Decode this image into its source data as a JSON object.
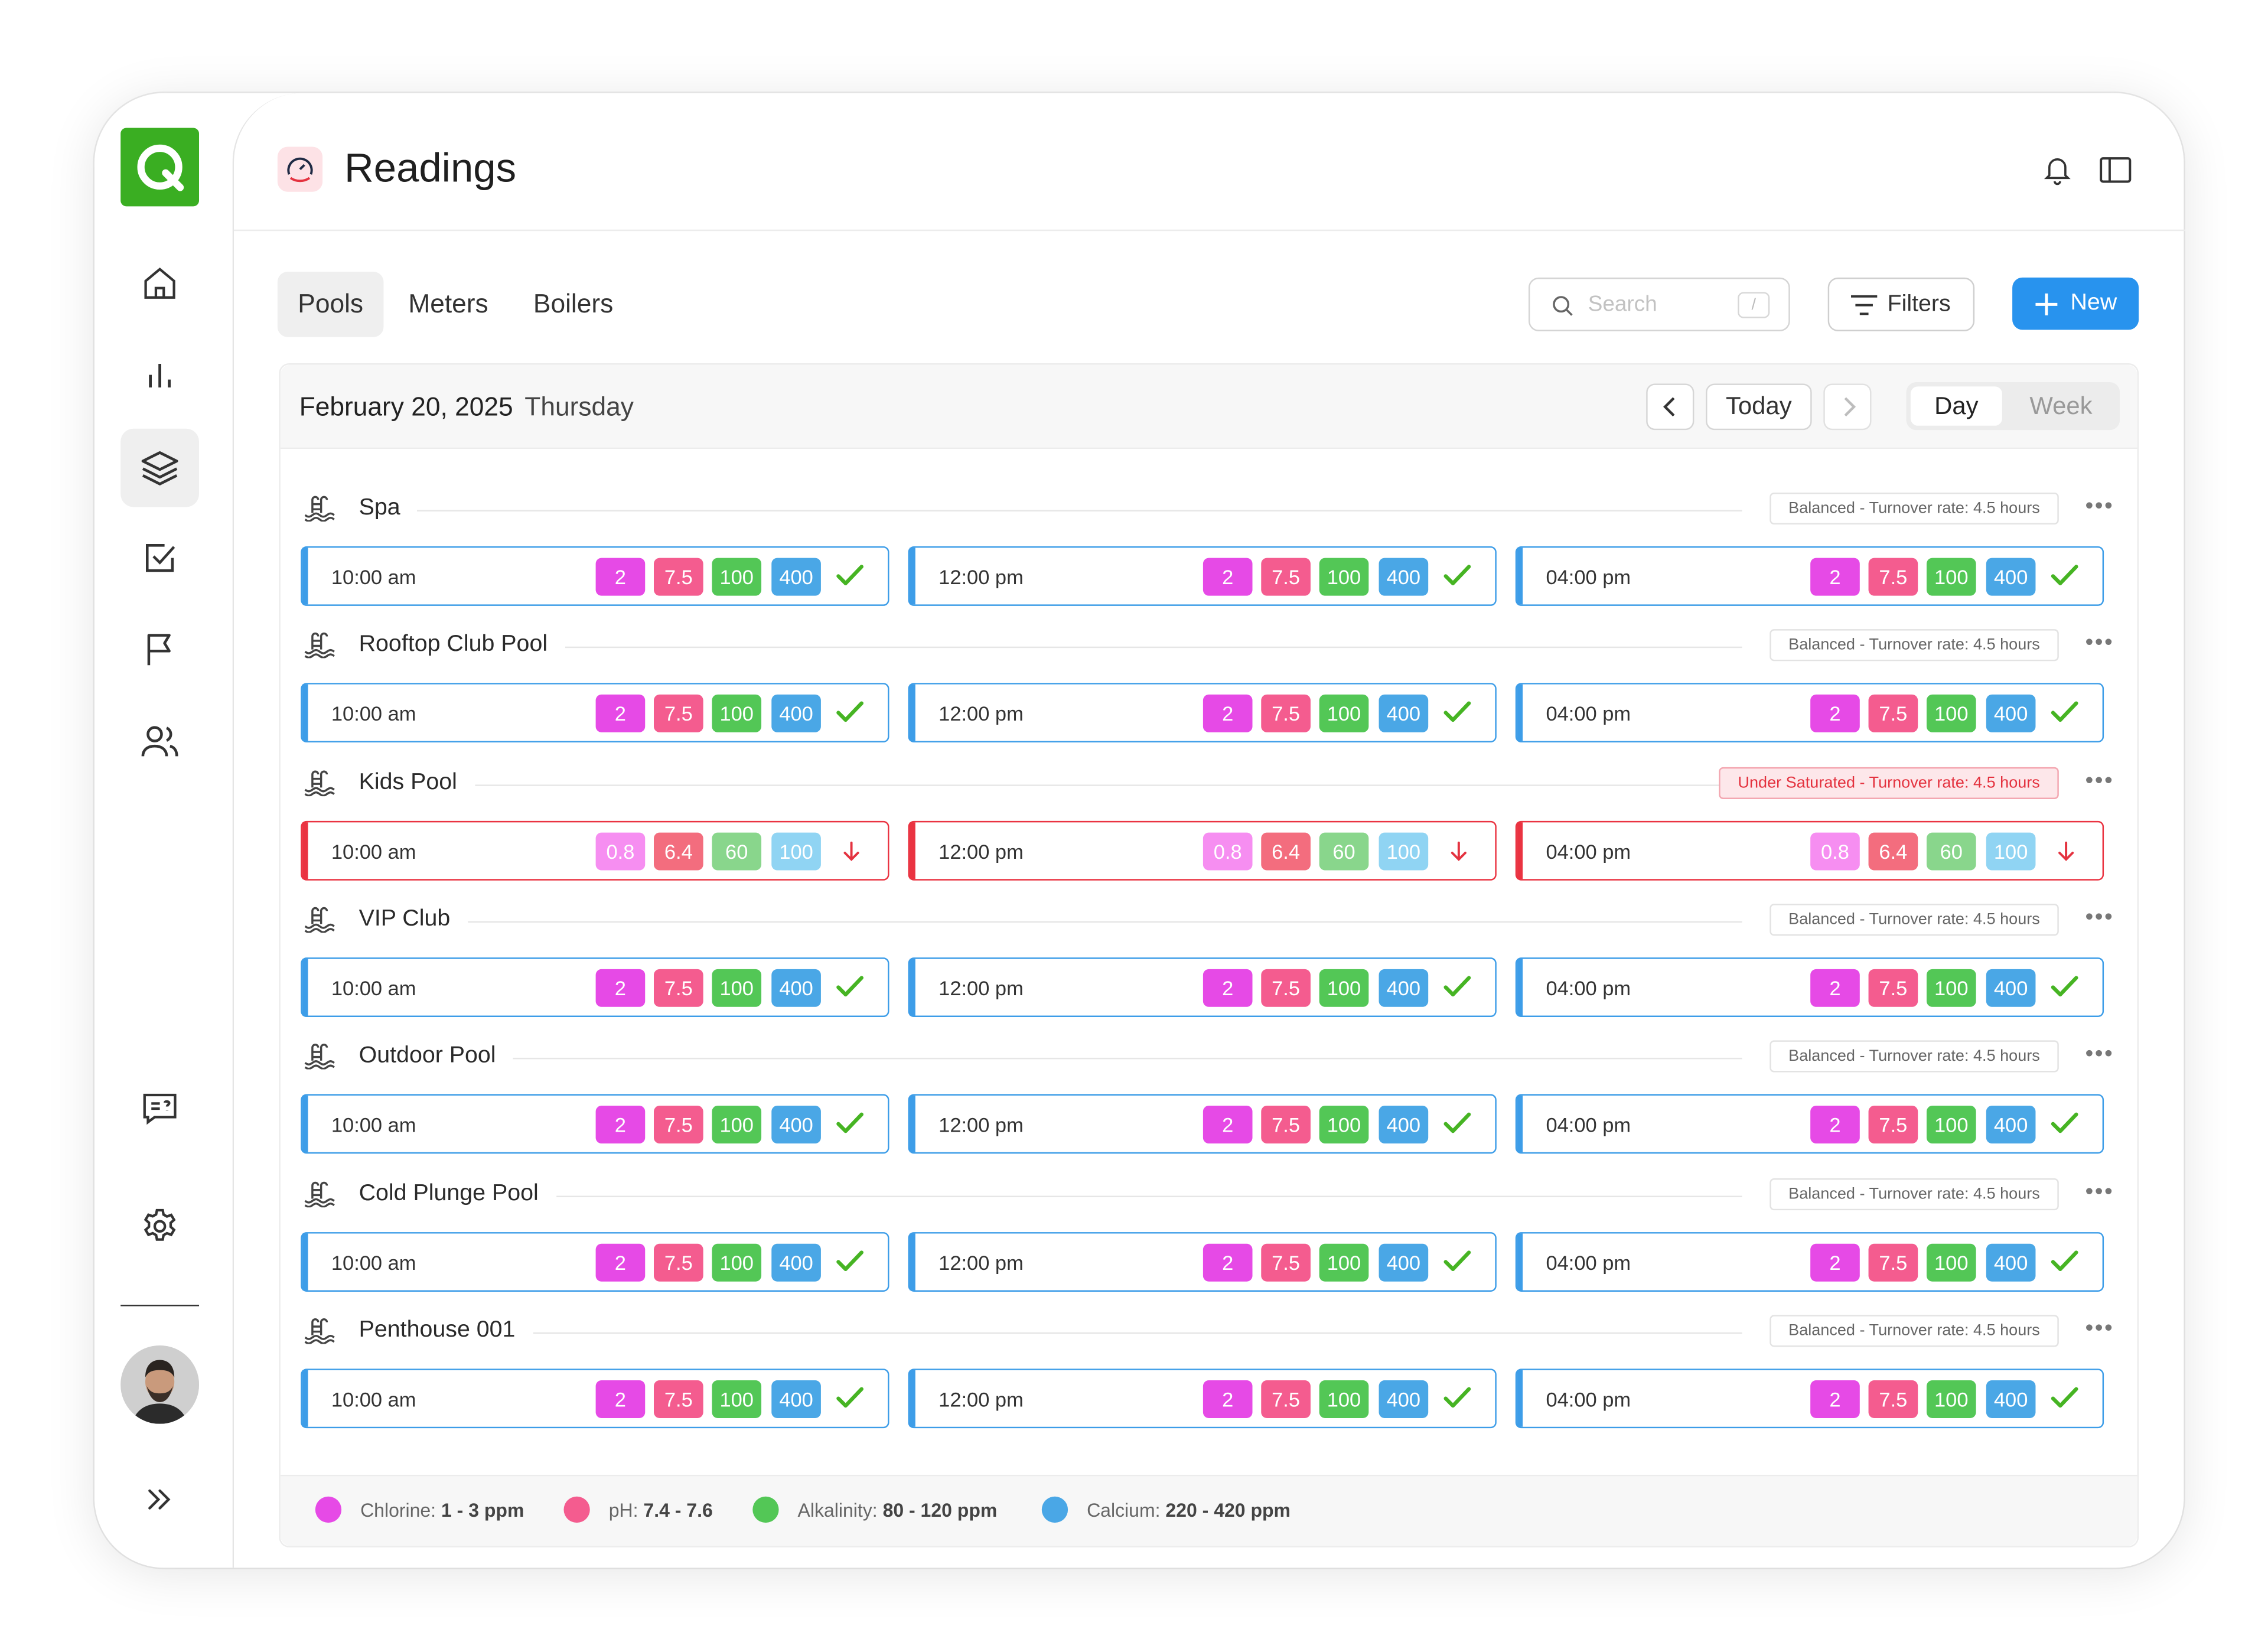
{
  "app": {
    "title": "Readings",
    "accent": "#2893ee",
    "brand": "#3aae22"
  },
  "tabs": [
    {
      "label": "Pools"
    },
    {
      "label": "Meters"
    },
    {
      "label": "Boilers"
    }
  ],
  "toolbar": {
    "search_placeholder": "Search",
    "search_shortcut": "/",
    "filters_label": "Filters",
    "new_label": "New"
  },
  "date": {
    "date": "February 20, 2025",
    "weekday": "Thursday",
    "today_label": "Today",
    "view_day": "Day",
    "view_week": "Week"
  },
  "sidebar": {
    "items": [
      "home-icon",
      "chart-icon",
      "layers-icon",
      "checkbox-icon",
      "flag-icon",
      "users-icon",
      "feedback-icon",
      "settings-icon",
      "expand-icon"
    ]
  },
  "pools": [
    {
      "name": "Spa",
      "status": "Balanced - Turnover rate: 4.5 hours",
      "ok": true,
      "readings": [
        {
          "time": "10:00 am",
          "values": [
            "2",
            "7.5",
            "100",
            "400"
          ]
        },
        {
          "time": "12:00 pm",
          "values": [
            "2",
            "7.5",
            "100",
            "400"
          ]
        },
        {
          "time": "04:00 pm",
          "values": [
            "2",
            "7.5",
            "100",
            "400"
          ]
        }
      ]
    },
    {
      "name": "Rooftop Club Pool",
      "status": "Balanced - Turnover rate: 4.5 hours",
      "ok": true,
      "readings": [
        {
          "time": "10:00 am",
          "values": [
            "2",
            "7.5",
            "100",
            "400"
          ]
        },
        {
          "time": "12:00 pm",
          "values": [
            "2",
            "7.5",
            "100",
            "400"
          ]
        },
        {
          "time": "04:00 pm",
          "values": [
            "2",
            "7.5",
            "100",
            "400"
          ]
        }
      ]
    },
    {
      "name": "Kids Pool",
      "status": "Under Saturated - Turnover rate: 4.5 hours",
      "ok": false,
      "readings": [
        {
          "time": "10:00 am",
          "values": [
            "0.8",
            "6.4",
            "60",
            "100"
          ]
        },
        {
          "time": "12:00 pm",
          "values": [
            "0.8",
            "6.4",
            "60",
            "100"
          ]
        },
        {
          "time": "04:00 pm",
          "values": [
            "0.8",
            "6.4",
            "60",
            "100"
          ]
        }
      ]
    },
    {
      "name": "VIP Club",
      "status": "Balanced - Turnover rate: 4.5 hours",
      "ok": true,
      "readings": [
        {
          "time": "10:00 am",
          "values": [
            "2",
            "7.5",
            "100",
            "400"
          ]
        },
        {
          "time": "12:00 pm",
          "values": [
            "2",
            "7.5",
            "100",
            "400"
          ]
        },
        {
          "time": "04:00 pm",
          "values": [
            "2",
            "7.5",
            "100",
            "400"
          ]
        }
      ]
    },
    {
      "name": "Outdoor Pool",
      "status": "Balanced - Turnover rate: 4.5 hours",
      "ok": true,
      "readings": [
        {
          "time": "10:00 am",
          "values": [
            "2",
            "7.5",
            "100",
            "400"
          ]
        },
        {
          "time": "12:00 pm",
          "values": [
            "2",
            "7.5",
            "100",
            "400"
          ]
        },
        {
          "time": "04:00 pm",
          "values": [
            "2",
            "7.5",
            "100",
            "400"
          ]
        }
      ]
    },
    {
      "name": "Cold Plunge Pool",
      "status": "Balanced - Turnover rate: 4.5 hours",
      "ok": true,
      "readings": [
        {
          "time": "10:00 am",
          "values": [
            "2",
            "7.5",
            "100",
            "400"
          ]
        },
        {
          "time": "12:00 pm",
          "values": [
            "2",
            "7.5",
            "100",
            "400"
          ]
        },
        {
          "time": "04:00 pm",
          "values": [
            "2",
            "7.5",
            "100",
            "400"
          ]
        }
      ]
    },
    {
      "name": "Penthouse 001",
      "status": "Balanced - Turnover rate: 4.5 hours",
      "ok": true,
      "readings": [
        {
          "time": "10:00 am",
          "values": [
            "2",
            "7.5",
            "100",
            "400"
          ]
        },
        {
          "time": "12:00 pm",
          "values": [
            "2",
            "7.5",
            "100",
            "400"
          ]
        },
        {
          "time": "04:00 pm",
          "values": [
            "2",
            "7.5",
            "100",
            "400"
          ]
        }
      ]
    }
  ],
  "legend": [
    {
      "label": "Chlorine:",
      "range": "1 - 3 ppm",
      "color": "#e64ae6"
    },
    {
      "label": "pH:",
      "range": "7.4 - 7.6",
      "color": "#f45c8f"
    },
    {
      "label": "Alkalinity:",
      "range": "80 - 120 ppm",
      "color": "#53c756"
    },
    {
      "label": "Calcium:",
      "range": "220 - 420 ppm",
      "color": "#4aa7e6"
    }
  ]
}
